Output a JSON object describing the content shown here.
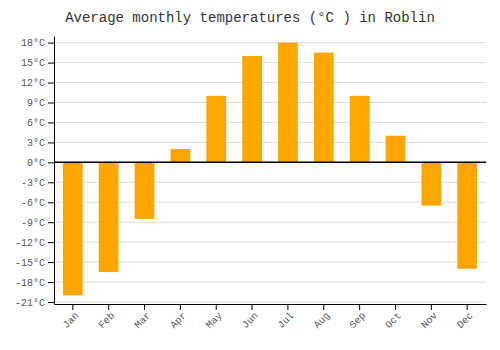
{
  "chart_data": {
    "type": "bar",
    "title": "Average monthly temperatures (°C ) in Roblin",
    "categories": [
      "Jan",
      "Feb",
      "Mar",
      "Apr",
      "May",
      "Jun",
      "Jul",
      "Aug",
      "Sep",
      "Oct",
      "Nov",
      "Dec"
    ],
    "values": [
      -20,
      -16.5,
      -8.5,
      2,
      10,
      16,
      18,
      16.5,
      10,
      4,
      -6.5,
      -16
    ],
    "color": "#FFA500",
    "ylim": [
      -21.3,
      19
    ],
    "yticks": [
      {
        "value": -21,
        "label": "-21°C"
      },
      {
        "value": -18,
        "label": "-18°C"
      },
      {
        "value": -15,
        "label": "-15°C"
      },
      {
        "value": -12,
        "label": "-12°C"
      },
      {
        "value": -9,
        "label": "-9°C"
      },
      {
        "value": -6,
        "label": "-6°C"
      },
      {
        "value": -3,
        "label": "-3°C"
      },
      {
        "value": 0,
        "label": "0°C"
      },
      {
        "value": 3,
        "label": "3°C"
      },
      {
        "value": 6,
        "label": "6°C"
      },
      {
        "value": 9,
        "label": "9°C"
      },
      {
        "value": 12,
        "label": "12°C"
      },
      {
        "value": 15,
        "label": "15°C"
      },
      {
        "value": 18,
        "label": "18°C"
      }
    ],
    "grid": true
  }
}
